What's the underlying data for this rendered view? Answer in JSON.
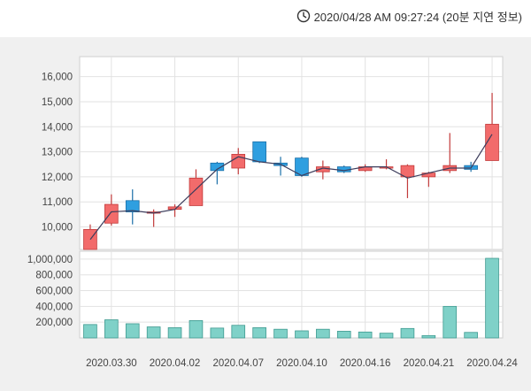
{
  "header": {
    "timestamp": "2020/04/28 AM 09:27:24 (20분 지연 정보)",
    "icon": "clock-icon"
  },
  "colors": {
    "up": "#f26b6b",
    "up_border": "#c23b3b",
    "down": "#2f9fe0",
    "down_border": "#1a6fa8",
    "volume": "#7fd1c8",
    "volume_border": "#3f9a90",
    "ma_line": "#3d3d5c",
    "grid": "#e2e2e2",
    "panel_bg": "#f0f0f0",
    "plot_bg": "#ffffff"
  },
  "chart_data": {
    "type": "candlestick",
    "title": "",
    "price_axis": {
      "ylim": [
        9100,
        16800
      ],
      "ticks": [
        10000,
        11000,
        12000,
        13000,
        14000,
        15000,
        16000
      ],
      "tick_labels": [
        "10,000",
        "11,000",
        "12,000",
        "13,000",
        "14,000",
        "15,000",
        "16,000"
      ]
    },
    "volume_axis": {
      "ylim": [
        0,
        1100000
      ],
      "ticks": [
        200000,
        400000,
        600000,
        800000,
        1000000
      ],
      "tick_labels": [
        "200,000",
        "400,000",
        "600,000",
        "800,000",
        "1,000,000"
      ]
    },
    "x_ticks": [
      {
        "index": 1,
        "label": "2020.03.30"
      },
      {
        "index": 4,
        "label": "2020.04.02"
      },
      {
        "index": 7,
        "label": "2020.04.07"
      },
      {
        "index": 10,
        "label": "2020.04.10"
      },
      {
        "index": 13,
        "label": "2020.04.16"
      },
      {
        "index": 16,
        "label": "2020.04.21"
      },
      {
        "index": 19,
        "label": "2020.04.24"
      }
    ],
    "candles": [
      {
        "open": 9100,
        "close": 9900,
        "high": 10100,
        "low": 9100,
        "volume": 170000
      },
      {
        "open": 10150,
        "close": 10900,
        "high": 11300,
        "low": 10050,
        "volume": 230000
      },
      {
        "open": 11050,
        "close": 10600,
        "high": 11500,
        "low": 10100,
        "volume": 180000
      },
      {
        "open": 10600,
        "close": 10600,
        "high": 10700,
        "low": 10000,
        "volume": 140000
      },
      {
        "open": 10700,
        "close": 10800,
        "high": 10900,
        "low": 10400,
        "volume": 130000
      },
      {
        "open": 10850,
        "close": 11950,
        "high": 12300,
        "low": 10850,
        "volume": 220000
      },
      {
        "open": 12550,
        "close": 12250,
        "high": 12600,
        "low": 11700,
        "volume": 125000
      },
      {
        "open": 12350,
        "close": 12900,
        "high": 13150,
        "low": 12100,
        "volume": 160000
      },
      {
        "open": 13400,
        "close": 12600,
        "high": 13400,
        "low": 12550,
        "volume": 130000
      },
      {
        "open": 12550,
        "close": 12450,
        "high": 12800,
        "low": 12050,
        "volume": 110000
      },
      {
        "open": 12750,
        "close": 12050,
        "high": 12800,
        "low": 12000,
        "volume": 90000
      },
      {
        "open": 12200,
        "close": 12400,
        "high": 12650,
        "low": 11900,
        "volume": 110000
      },
      {
        "open": 12400,
        "close": 12200,
        "high": 12450,
        "low": 12150,
        "volume": 85000
      },
      {
        "open": 12250,
        "close": 12400,
        "high": 12500,
        "low": 12200,
        "volume": 75000
      },
      {
        "open": 12400,
        "close": 12400,
        "high": 12700,
        "low": 12300,
        "volume": 60000
      },
      {
        "open": 12000,
        "close": 12450,
        "high": 12500,
        "low": 11150,
        "volume": 120000
      },
      {
        "open": 12000,
        "close": 12150,
        "high": 12200,
        "low": 11600,
        "volume": 30000
      },
      {
        "open": 12250,
        "close": 12450,
        "high": 13750,
        "low": 12150,
        "volume": 400000
      },
      {
        "open": 12450,
        "close": 12300,
        "high": 12600,
        "low": 12200,
        "volume": 70000
      },
      {
        "open": 12650,
        "close": 14100,
        "high": 15350,
        "low": 12650,
        "volume": 1010000
      }
    ],
    "moving_average": [
      9500,
      10600,
      10650,
      10550,
      10700,
      11500,
      12300,
      12800,
      12600,
      12500,
      12050,
      12350,
      12250,
      12400,
      12400,
      11950,
      12150,
      12350,
      12350,
      13700
    ],
    "grid": true,
    "legend": "none"
  }
}
